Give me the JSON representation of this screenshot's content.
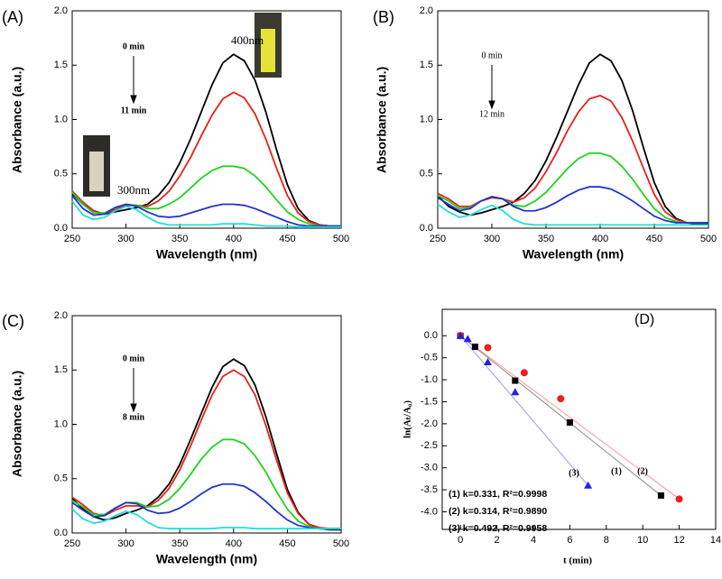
{
  "chart_data": [
    {
      "type": "line",
      "x_label": "Wavelength (nm)",
      "y_label": "Absorbance (a.u.)",
      "annotations": [
        "(A)",
        "0 min",
        "11 min",
        "400nm",
        "300nm"
      ],
      "xlim": [
        250,
        500
      ],
      "xticks": [
        250,
        300,
        350,
        400,
        450,
        500
      ],
      "ylim": [
        0,
        2
      ],
      "yticks": [
        {
          "value": 0,
          "label": "0.0"
        },
        0.5,
        {
          "value": 1,
          "label": "1.0"
        },
        1.5,
        {
          "value": 2,
          "label": "2.0"
        }
      ],
      "x": [
        250,
        260,
        270,
        280,
        290,
        300,
        310,
        320,
        330,
        340,
        350,
        360,
        370,
        380,
        390,
        400,
        410,
        420,
        430,
        440,
        450,
        460,
        470,
        480,
        490,
        500
      ],
      "series": [
        {
          "color": "#000000",
          "values": [
            0.32,
            0.22,
            0.16,
            0.13,
            0.15,
            0.17,
            0.19,
            0.22,
            0.3,
            0.42,
            0.6,
            0.82,
            1.07,
            1.32,
            1.52,
            1.6,
            1.54,
            1.36,
            1.07,
            0.72,
            0.4,
            0.18,
            0.07,
            0.03,
            0.02,
            0.02
          ]
        },
        {
          "color": "#e8201a",
          "values": [
            0.34,
            0.24,
            0.16,
            0.13,
            0.17,
            0.21,
            0.21,
            0.2,
            0.25,
            0.34,
            0.48,
            0.65,
            0.85,
            1.04,
            1.19,
            1.25,
            1.2,
            1.05,
            0.82,
            0.55,
            0.3,
            0.14,
            0.06,
            0.03,
            0.02,
            0.02
          ]
        },
        {
          "color": "#1ed41e",
          "values": [
            0.33,
            0.22,
            0.14,
            0.14,
            0.19,
            0.22,
            0.21,
            0.18,
            0.18,
            0.22,
            0.28,
            0.37,
            0.46,
            0.53,
            0.57,
            0.57,
            0.55,
            0.48,
            0.38,
            0.26,
            0.15,
            0.08,
            0.04,
            0.02,
            0.02,
            0.02
          ]
        },
        {
          "color": "#2233cc",
          "values": [
            0.3,
            0.18,
            0.12,
            0.13,
            0.19,
            0.22,
            0.2,
            0.15,
            0.11,
            0.1,
            0.11,
            0.14,
            0.17,
            0.2,
            0.22,
            0.22,
            0.21,
            0.18,
            0.14,
            0.1,
            0.06,
            0.03,
            0.02,
            0.02,
            0.02,
            0.02
          ]
        },
        {
          "color": "#22dddd",
          "values": [
            0.25,
            0.12,
            0.08,
            0.1,
            0.16,
            0.2,
            0.17,
            0.1,
            0.05,
            0.03,
            0.03,
            0.03,
            0.03,
            0.03,
            0.04,
            0.04,
            0.04,
            0.03,
            0.02,
            0.02,
            0.02,
            0.01,
            0.01,
            0.01,
            0.01,
            0.01
          ]
        }
      ]
    },
    {
      "type": "line",
      "x_label": "Wavelength (nm)",
      "y_label": "Absorbance (a.u.)",
      "annotations": [
        "(B)",
        "0 min",
        "12 min"
      ],
      "xlim": [
        250,
        500
      ],
      "xticks": [
        250,
        300,
        350,
        400,
        450,
        500
      ],
      "ylim": [
        0,
        2
      ],
      "yticks": [
        {
          "value": 0,
          "label": "0.0"
        },
        0.5,
        {
          "value": 1,
          "label": "1.0"
        },
        1.5,
        {
          "value": 2,
          "label": "2.0"
        }
      ],
      "x": [
        250,
        260,
        270,
        280,
        290,
        300,
        310,
        320,
        330,
        340,
        350,
        360,
        370,
        380,
        390,
        400,
        410,
        420,
        430,
        440,
        450,
        460,
        470,
        480,
        490,
        500
      ],
      "series": [
        {
          "color": "#000000",
          "values": [
            0.3,
            0.2,
            0.15,
            0.12,
            0.14,
            0.17,
            0.2,
            0.24,
            0.32,
            0.44,
            0.62,
            0.84,
            1.08,
            1.32,
            1.52,
            1.6,
            1.54,
            1.36,
            1.08,
            0.74,
            0.42,
            0.2,
            0.09,
            0.05,
            0.04,
            0.04
          ]
        },
        {
          "color": "#e8201a",
          "values": [
            0.32,
            0.27,
            0.2,
            0.2,
            0.25,
            0.28,
            0.27,
            0.24,
            0.28,
            0.37,
            0.52,
            0.7,
            0.9,
            1.07,
            1.19,
            1.22,
            1.17,
            1.02,
            0.8,
            0.55,
            0.31,
            0.15,
            0.08,
            0.05,
            0.05,
            0.05
          ]
        },
        {
          "color": "#1ed41e",
          "values": [
            0.3,
            0.25,
            0.18,
            0.19,
            0.25,
            0.29,
            0.27,
            0.21,
            0.2,
            0.25,
            0.33,
            0.44,
            0.55,
            0.64,
            0.69,
            0.69,
            0.66,
            0.57,
            0.45,
            0.31,
            0.18,
            0.1,
            0.06,
            0.05,
            0.05,
            0.05
          ]
        },
        {
          "color": "#2233cc",
          "values": [
            0.28,
            0.22,
            0.16,
            0.18,
            0.25,
            0.29,
            0.27,
            0.2,
            0.16,
            0.16,
            0.19,
            0.24,
            0.3,
            0.35,
            0.38,
            0.38,
            0.36,
            0.31,
            0.25,
            0.18,
            0.11,
            0.07,
            0.05,
            0.05,
            0.05,
            0.05
          ]
        },
        {
          "color": "#22dddd",
          "values": [
            0.22,
            0.15,
            0.1,
            0.12,
            0.17,
            0.21,
            0.16,
            0.08,
            0.04,
            0.03,
            0.03,
            0.03,
            0.03,
            0.03,
            0.03,
            0.03,
            0.03,
            0.03,
            0.03,
            0.03,
            0.03,
            0.03,
            0.03,
            0.03,
            0.03,
            0.03
          ]
        }
      ]
    },
    {
      "type": "line",
      "x_label": "Wavelength (nm)",
      "y_label": "Absorbance (a.u.)",
      "annotations": [
        "(C)",
        "0 min",
        "8 min"
      ],
      "xlim": [
        250,
        500
      ],
      "xticks": [
        250,
        300,
        350,
        400,
        450,
        500
      ],
      "ylim": [
        0,
        2
      ],
      "yticks": [
        {
          "value": 0,
          "label": "0.0"
        },
        0.5,
        {
          "value": 1,
          "label": "1.0"
        },
        1.5,
        {
          "value": 2,
          "label": "2.0"
        }
      ],
      "x": [
        250,
        260,
        270,
        280,
        290,
        300,
        310,
        320,
        330,
        340,
        350,
        360,
        370,
        380,
        390,
        400,
        410,
        420,
        430,
        440,
        450,
        460,
        470,
        480,
        490,
        500
      ],
      "series": [
        {
          "color": "#000000",
          "values": [
            0.32,
            0.22,
            0.15,
            0.12,
            0.14,
            0.18,
            0.21,
            0.25,
            0.33,
            0.45,
            0.63,
            0.86,
            1.1,
            1.34,
            1.53,
            1.6,
            1.54,
            1.36,
            1.07,
            0.73,
            0.4,
            0.19,
            0.08,
            0.04,
            0.03,
            0.03
          ]
        },
        {
          "color": "#e8201a",
          "values": [
            0.33,
            0.26,
            0.18,
            0.16,
            0.21,
            0.25,
            0.25,
            0.24,
            0.3,
            0.41,
            0.58,
            0.8,
            1.04,
            1.27,
            1.44,
            1.5,
            1.44,
            1.27,
            0.99,
            0.67,
            0.37,
            0.18,
            0.08,
            0.05,
            0.04,
            0.04
          ]
        },
        {
          "color": "#1ed41e",
          "values": [
            0.3,
            0.24,
            0.17,
            0.17,
            0.23,
            0.28,
            0.28,
            0.24,
            0.25,
            0.31,
            0.41,
            0.54,
            0.68,
            0.79,
            0.86,
            0.86,
            0.82,
            0.71,
            0.56,
            0.38,
            0.22,
            0.11,
            0.06,
            0.04,
            0.04,
            0.04
          ]
        },
        {
          "color": "#2233cc",
          "values": [
            0.28,
            0.21,
            0.15,
            0.16,
            0.23,
            0.28,
            0.27,
            0.21,
            0.18,
            0.19,
            0.23,
            0.29,
            0.36,
            0.42,
            0.45,
            0.45,
            0.43,
            0.37,
            0.29,
            0.2,
            0.12,
            0.07,
            0.05,
            0.04,
            0.04,
            0.04
          ]
        },
        {
          "color": "#22dddd",
          "values": [
            0.22,
            0.13,
            0.09,
            0.11,
            0.16,
            0.2,
            0.17,
            0.1,
            0.05,
            0.04,
            0.04,
            0.04,
            0.04,
            0.04,
            0.05,
            0.05,
            0.05,
            0.04,
            0.04,
            0.04,
            0.04,
            0.04,
            0.04,
            0.04,
            0.04,
            0.04
          ]
        }
      ]
    },
    {
      "type": "scatter",
      "x_label": "t (min)",
      "y_label": "ln(Aₜ/A₀)",
      "annotations": [
        "(D)",
        "(3)",
        "(1)",
        "(2)",
        "(1) k=0.331, R²=0.9998",
        "(2) k=0.314, R²=0.9890",
        "(3) k=0.492, R²=0.9958"
      ],
      "xlim": [
        -1,
        14
      ],
      "xticks": [
        0,
        2,
        4,
        6,
        8,
        10,
        12,
        14
      ],
      "ylim": [
        -4.4,
        0.6
      ],
      "yticks": [
        {
          "value": 0,
          "label": "0.0"
        },
        -0.5,
        {
          "value": -1,
          "label": "-1.0"
        },
        -1.5,
        {
          "value": -2,
          "label": "-2.0"
        },
        -2.5,
        {
          "value": -3,
          "label": "-3.0"
        },
        -3.5,
        {
          "value": -4,
          "label": "-4.0"
        }
      ],
      "series": [
        {
          "color": "#000000",
          "marker": "square",
          "x": [
            0,
            0.8,
            3,
            6,
            11
          ],
          "values": [
            0,
            -0.25,
            -1.02,
            -1.97,
            -3.63
          ]
        },
        {
          "color": "#ee1c1c",
          "marker": "circle",
          "x": [
            0,
            1.5,
            3.5,
            5.5,
            12
          ],
          "values": [
            0,
            -0.27,
            -0.84,
            -1.43,
            -3.71
          ]
        },
        {
          "color": "#2222dd",
          "marker": "triangle",
          "x": [
            0,
            0.4,
            1.5,
            3,
            7
          ],
          "values": [
            0,
            -0.07,
            -0.6,
            -1.28,
            -3.4
          ]
        }
      ]
    }
  ]
}
